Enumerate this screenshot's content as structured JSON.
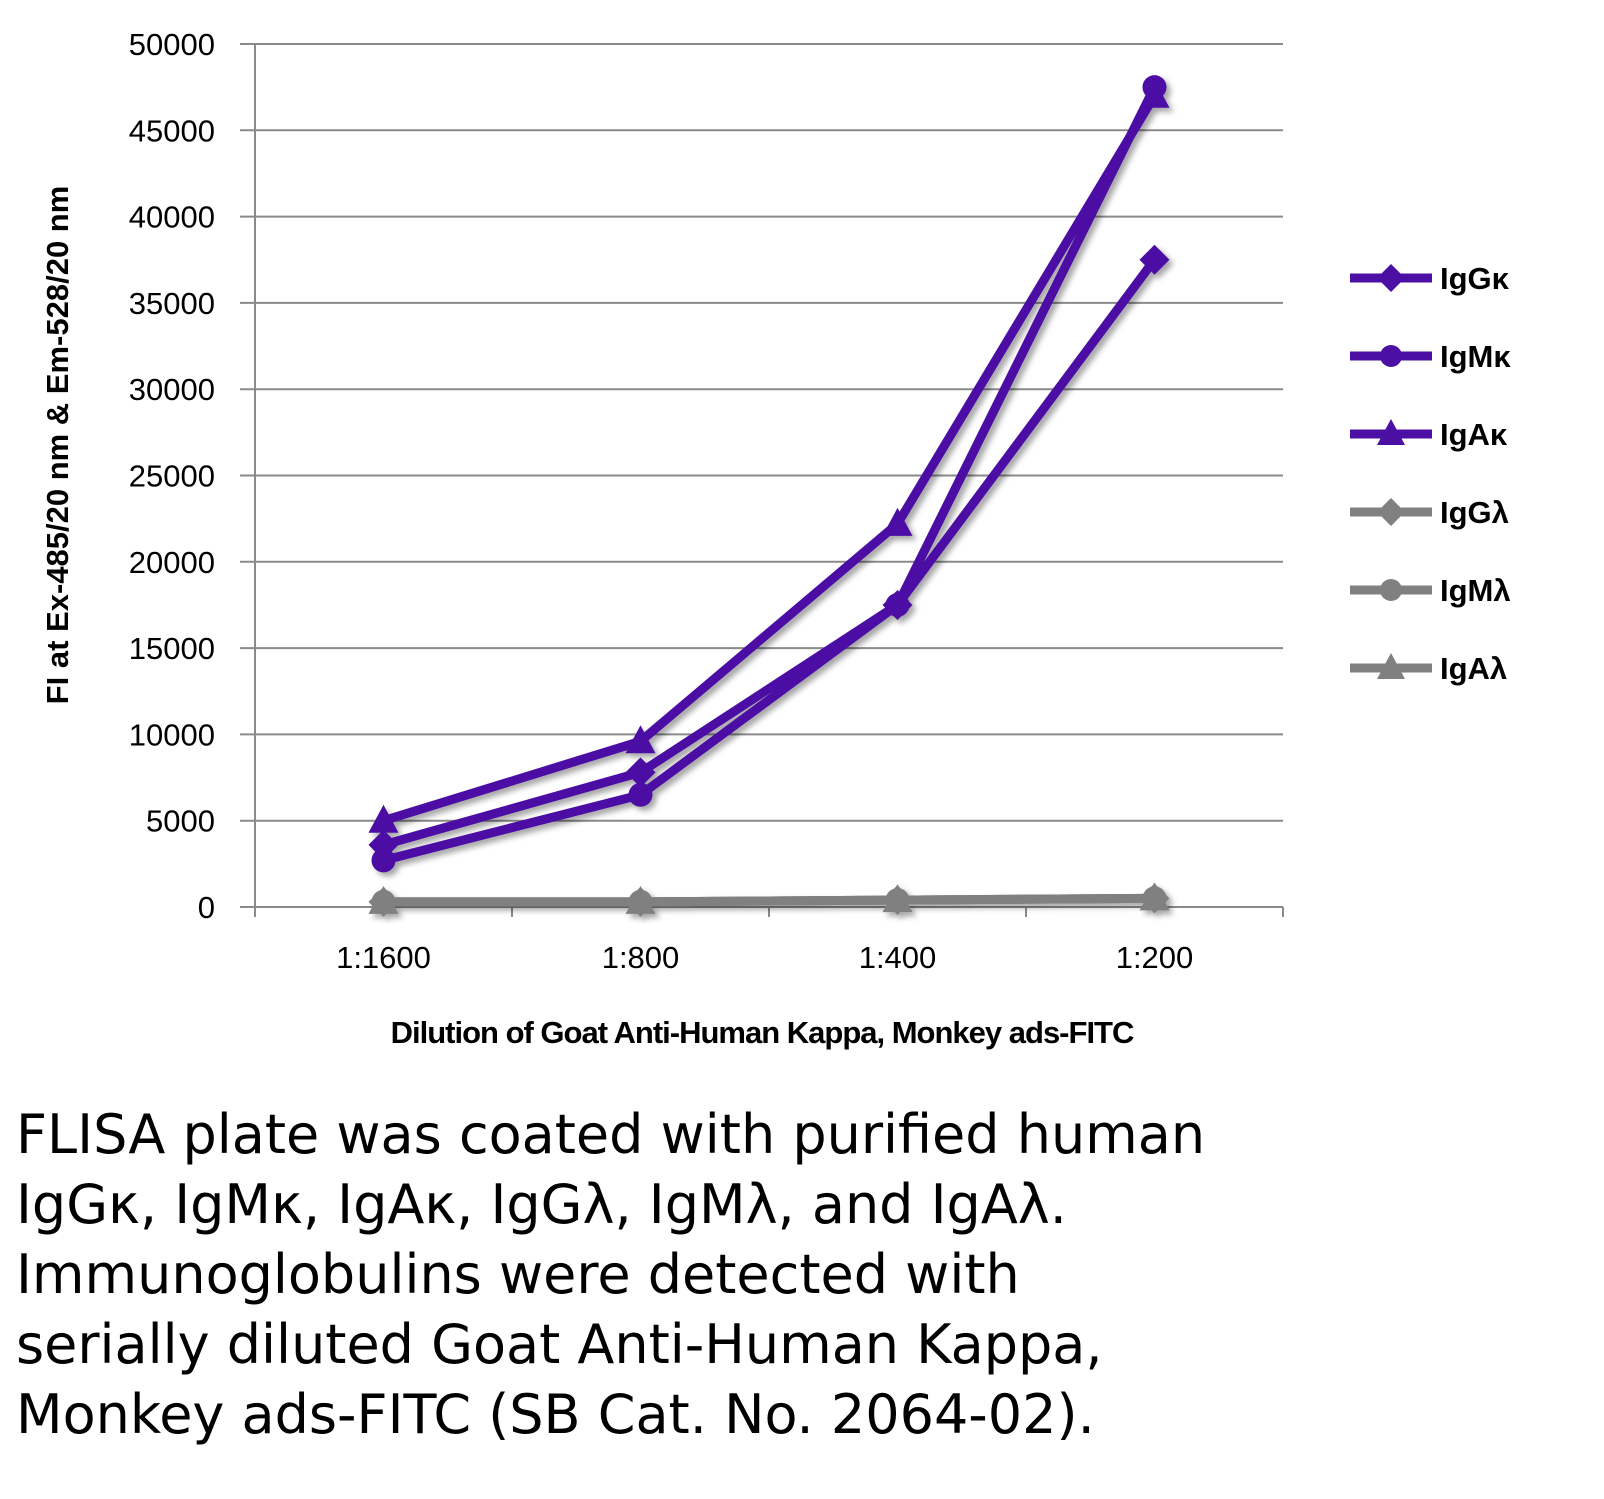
{
  "chart_data": {
    "type": "line",
    "title": "",
    "xlabel": "Dilution of Goat Anti-Human Kappa, Monkey ads-FITC",
    "ylabel": "FI at Ex-485/20 nm & Em-528/20 nm",
    "categories": [
      "1:1600",
      "1:800",
      "1:400",
      "1:200"
    ],
    "ylim": [
      0,
      50000
    ],
    "yticks": [
      0,
      5000,
      10000,
      15000,
      20000,
      25000,
      30000,
      35000,
      40000,
      45000,
      50000
    ],
    "grid": true,
    "legend_position": "right",
    "series": [
      {
        "name": "IgGκ",
        "marker": "diamond",
        "color": "#4b0fa3",
        "values": [
          3600,
          7800,
          17500,
          37500
        ]
      },
      {
        "name": "IgMκ",
        "marker": "circle",
        "color": "#4b0fa3",
        "values": [
          2700,
          6500,
          17500,
          47500
        ]
      },
      {
        "name": "IgAκ",
        "marker": "triangle",
        "color": "#4b0fa3",
        "values": [
          5000,
          9600,
          22200,
          47000
        ]
      },
      {
        "name": "IgGλ",
        "marker": "diamond",
        "color": "#808080",
        "values": [
          300,
          300,
          400,
          500
        ]
      },
      {
        "name": "IgMλ",
        "marker": "circle",
        "color": "#808080",
        "values": [
          300,
          300,
          400,
          500
        ]
      },
      {
        "name": "IgAλ",
        "marker": "triangle",
        "color": "#808080",
        "values": [
          300,
          300,
          400,
          500
        ]
      }
    ]
  },
  "caption": [
    "FLISA plate was coated with purified human",
    "IgGκ, IgMκ, IgAκ, IgGλ, IgMλ, and IgAλ.",
    "Immunoglobulins were detected with",
    "serially diluted Goat Anti-Human Kappa,",
    "Monkey ads-FITC (SB Cat. No. 2064-02)."
  ]
}
